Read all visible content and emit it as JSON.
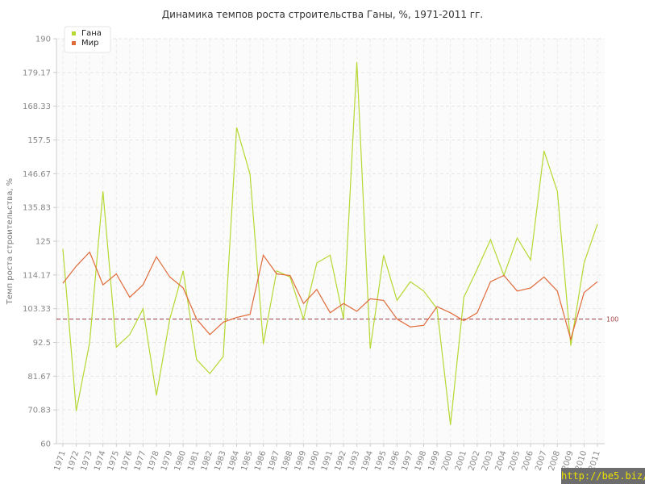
{
  "chart_data": {
    "type": "line",
    "title": "Динамика темпов роста строительства Ганы, %, 1971-2011 гг.",
    "xlabel": "",
    "ylabel": "Темп роста строительства, %",
    "ylim": [
      60,
      190
    ],
    "yticks": [
      "60",
      "70.83",
      "81.67",
      "92.5",
      "103.33",
      "114.17",
      "125",
      "135.83",
      "146.67",
      "157.5",
      "168.33",
      "179.17",
      "190"
    ],
    "categories": [
      "1971",
      "1972",
      "1973",
      "1974",
      "1975",
      "1976",
      "1977",
      "1978",
      "1979",
      "1980",
      "1981",
      "1982",
      "1983",
      "1984",
      "1985",
      "1986",
      "1987",
      "1988",
      "1989",
      "1990",
      "1991",
      "1992",
      "1993",
      "1994",
      "1995",
      "1996",
      "1997",
      "1998",
      "1999",
      "2000",
      "2001",
      "2002",
      "2003",
      "2004",
      "2005",
      "2006",
      "2007",
      "2008",
      "2009",
      "2010",
      "2011"
    ],
    "series": [
      {
        "name": "Гана",
        "color": "#b5d832",
        "values": [
          122.5,
          70.5,
          92.5,
          141,
          91,
          95,
          103.3,
          75.5,
          100,
          115.5,
          87,
          82.5,
          88,
          161.5,
          146.5,
          92,
          115.5,
          113.5,
          100,
          118,
          120.5,
          100,
          182.5,
          90.5,
          120.5,
          106,
          112,
          109,
          103.3,
          66,
          107,
          116,
          125.5,
          114,
          126,
          119,
          154,
          141,
          91.5,
          118,
          130.5
        ]
      },
      {
        "name": "Мир",
        "color": "#e06a3a",
        "values": [
          111.5,
          117,
          121.5,
          111,
          114.5,
          107,
          111,
          120,
          113.5,
          110,
          100,
          95,
          99,
          100.5,
          101.5,
          120.5,
          114.5,
          114,
          105,
          109.5,
          102,
          105,
          102.5,
          106.5,
          106,
          100,
          97.5,
          98,
          104,
          102,
          99.5,
          102,
          112,
          114,
          109,
          110,
          113.5,
          109,
          93.5,
          108.5,
          112
        ]
      }
    ],
    "reference_line": {
      "value": 100,
      "label": "100",
      "color": "#a04040"
    },
    "grid": true,
    "legend": "top-left"
  },
  "watermark": "http://be5.biz/"
}
